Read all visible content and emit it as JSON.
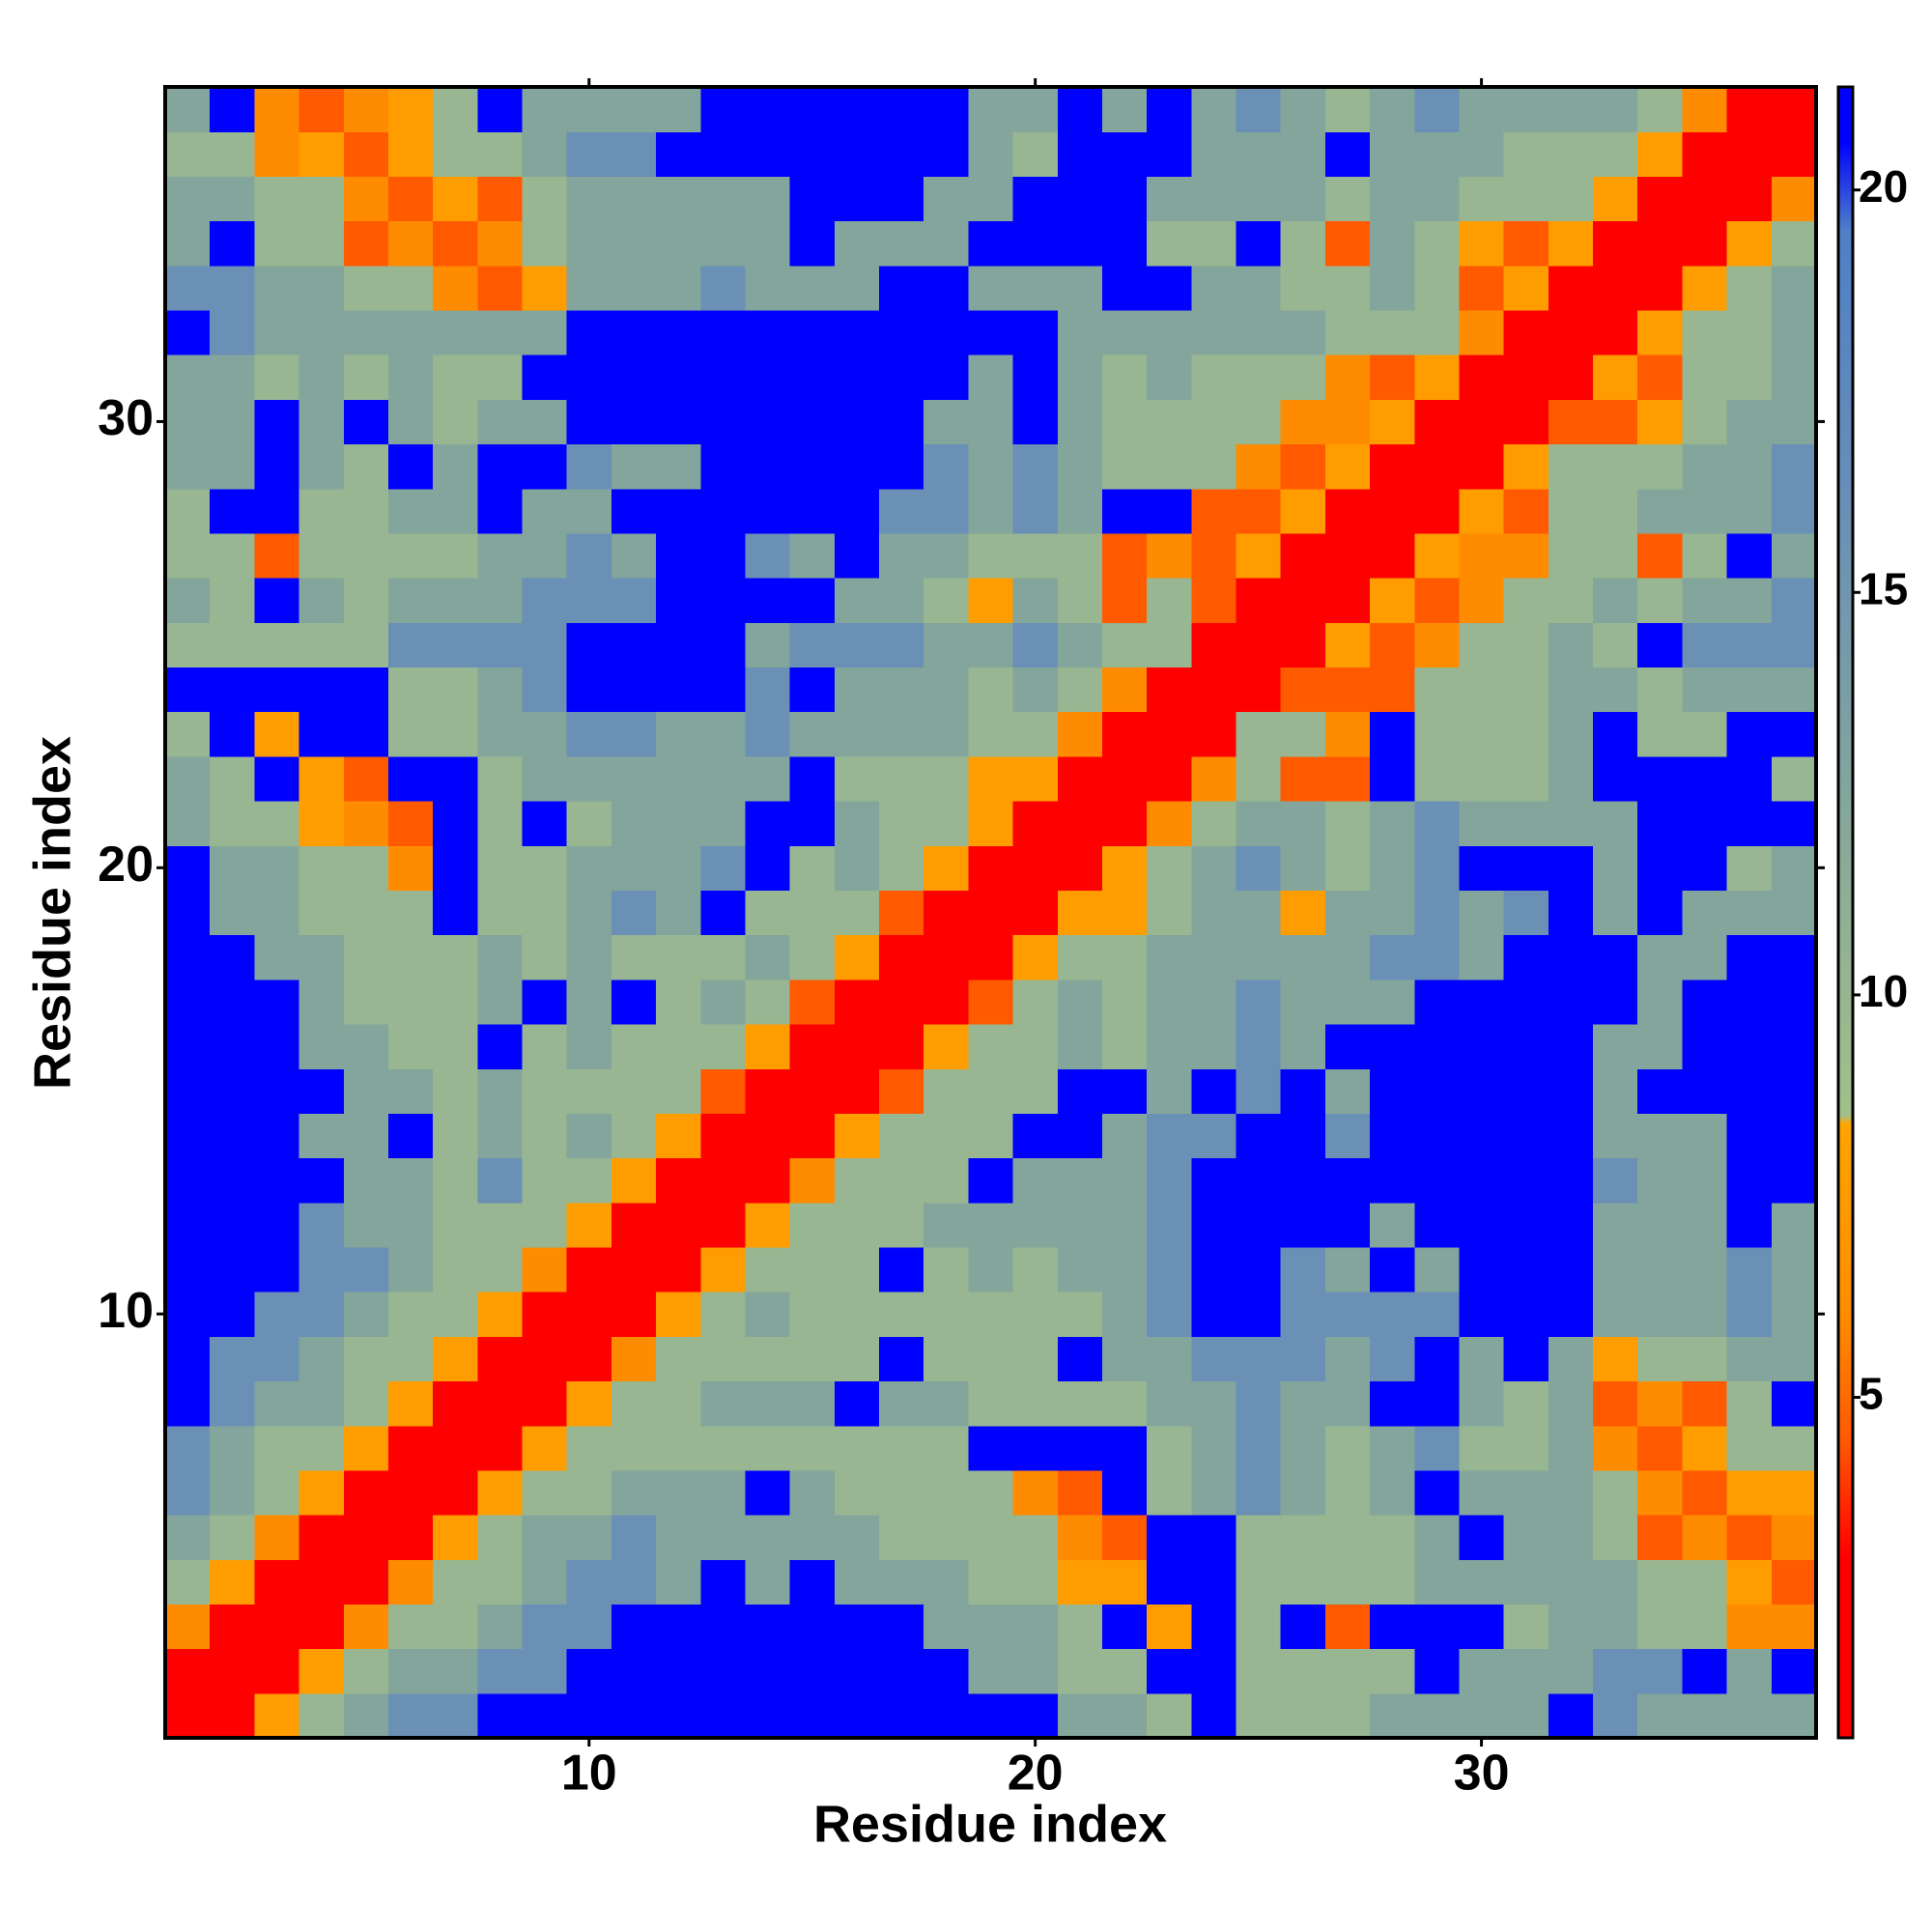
{
  "chart_data": {
    "type": "heatmap",
    "x_label": "Residue index",
    "y_label": "Residue index",
    "xlim": [
      0.5,
      37.5
    ],
    "ylim": [
      0.5,
      37.5
    ],
    "xticks": [
      10,
      20,
      30
    ],
    "yticks": [
      10,
      20,
      30
    ],
    "zlim": [
      0.77,
      21.28
    ],
    "colorbar_ticks": [
      5,
      10,
      15,
      20
    ],
    "colorscale": [
      [
        0.77,
        "#ff0000"
      ],
      [
        3,
        "#ff0000"
      ],
      [
        4.5,
        "#ff5a00"
      ],
      [
        6,
        "#ff8c00"
      ],
      [
        8.4,
        "#ffa500"
      ],
      [
        8.5,
        "#a2c08a"
      ],
      [
        12.5,
        "#84a59c"
      ],
      [
        16,
        "#6a90b6"
      ],
      [
        19.5,
        "#4f7fc8"
      ],
      [
        20.6,
        "#0000ff"
      ],
      [
        21.28,
        "#0000ff"
      ]
    ],
    "x": [
      1,
      2,
      3,
      4,
      5,
      6,
      7,
      8,
      9,
      10,
      11,
      12,
      13,
      14,
      15,
      16,
      17,
      18,
      19,
      20,
      21,
      22,
      23,
      24,
      25,
      26,
      27,
      28,
      29,
      30,
      31,
      32,
      33,
      34,
      35,
      36,
      37
    ],
    "y": [
      1,
      2,
      3,
      4,
      5,
      6,
      7,
      8,
      9,
      10,
      11,
      12,
      13,
      14,
      15,
      16,
      17,
      18,
      19,
      20,
      21,
      22,
      23,
      24,
      25,
      26,
      27,
      28,
      29,
      30,
      31,
      32,
      33,
      34,
      35,
      36,
      37
    ],
    "z": [
      [
        2,
        2,
        7.5,
        10,
        12.5,
        16,
        16,
        21,
        21,
        21,
        21,
        21,
        21,
        21,
        21,
        21,
        21,
        21,
        21,
        21,
        12.5,
        12.5,
        10,
        21,
        10,
        10,
        10,
        12.5,
        12.5,
        12.5,
        12.5,
        21,
        16,
        12.5,
        12.5,
        12.5,
        12.5
      ],
      [
        2,
        2,
        2,
        7.5,
        10,
        12.5,
        12.5,
        16,
        16,
        21,
        21,
        21,
        21,
        21,
        21,
        21,
        21,
        21,
        12.5,
        12.5,
        10,
        10,
        21,
        21,
        10,
        10,
        10,
        10,
        21,
        12.5,
        12.5,
        12.5,
        16,
        16,
        21,
        12.5,
        21
      ],
      [
        6,
        2,
        2,
        2,
        6,
        10,
        10,
        12.5,
        16,
        16,
        21,
        21,
        21,
        21,
        21,
        21,
        21,
        12.5,
        12.5,
        12.5,
        10,
        21,
        7.5,
        21,
        10,
        21,
        4.5,
        21,
        21,
        21,
        10,
        12.5,
        12.5,
        10,
        10,
        6,
        6
      ],
      [
        10,
        7.5,
        2,
        2,
        2,
        6,
        10,
        10,
        12.5,
        16,
        16,
        12.5,
        21,
        12.5,
        21,
        12.5,
        12.5,
        12.5,
        10,
        10,
        7.5,
        7.5,
        21,
        21,
        10,
        10,
        10,
        10,
        12.5,
        12.5,
        12.5,
        12.5,
        12.5,
        10,
        10,
        7.5,
        4.5
      ],
      [
        12.5,
        10,
        6,
        2,
        2,
        2,
        7.5,
        10,
        12.5,
        12.5,
        16,
        12.5,
        12.5,
        12.5,
        12.5,
        12.5,
        10,
        10,
        10,
        10,
        6,
        4.5,
        21,
        21,
        10,
        10,
        10,
        10,
        12.5,
        21,
        12.5,
        12.5,
        10,
        4.5,
        6,
        4.5,
        6
      ],
      [
        16,
        12.5,
        10,
        7.5,
        2,
        2,
        2,
        7.5,
        10,
        10,
        12.5,
        12.5,
        12.5,
        21,
        12.5,
        10,
        10,
        10,
        10,
        6,
        4.5,
        21,
        10,
        12.5,
        16,
        12.5,
        10,
        12.5,
        21,
        12.5,
        12.5,
        12.5,
        10,
        6,
        4.5,
        7.5,
        7.5
      ],
      [
        16,
        12.5,
        10,
        10,
        7.5,
        2,
        2,
        2,
        7.5,
        10,
        10,
        10,
        10,
        10,
        10,
        10,
        10,
        10,
        21,
        21,
        21,
        21,
        10,
        12.5,
        16,
        12.5,
        10,
        12.5,
        16,
        10,
        10,
        12.5,
        6,
        4.5,
        7.5,
        10,
        10
      ],
      [
        21,
        16,
        12.5,
        12.5,
        10,
        7.5,
        2,
        2,
        2,
        7.5,
        10,
        10,
        12.5,
        12.5,
        12.5,
        21,
        12.5,
        12.5,
        10,
        10,
        10,
        10,
        12.5,
        12.5,
        16,
        12.5,
        12.5,
        21,
        21,
        12.5,
        10,
        12.5,
        4.5,
        6,
        4.5,
        10,
        21
      ],
      [
        21,
        16,
        16,
        12.5,
        10,
        10,
        7.5,
        2,
        2,
        2,
        6,
        10,
        10,
        10,
        10,
        10,
        21,
        10,
        10,
        10,
        21,
        12.5,
        12.5,
        16,
        16,
        16,
        12.5,
        16,
        21,
        12.5,
        21,
        12.5,
        7.5,
        10,
        10,
        12.5,
        12.5
      ],
      [
        21,
        21,
        16,
        16,
        12.5,
        10,
        10,
        7.5,
        2,
        2,
        2,
        7.5,
        10,
        12.5,
        10,
        10,
        10,
        10,
        10,
        10,
        10,
        12.5,
        16,
        21,
        21,
        16,
        16,
        16,
        16,
        21,
        21,
        21,
        12.5,
        12.5,
        12.5,
        16,
        12.5
      ],
      [
        21,
        21,
        21,
        16,
        16,
        12.5,
        10,
        10,
        6,
        2,
        2,
        2,
        7.5,
        10,
        10,
        10,
        21,
        10,
        12.5,
        10,
        12.5,
        12.5,
        16,
        21,
        21,
        16,
        12.5,
        21,
        12.5,
        21,
        21,
        21,
        12.5,
        12.5,
        12.5,
        16,
        12.5
      ],
      [
        21,
        21,
        21,
        16,
        12.5,
        12.5,
        10,
        10,
        10,
        7.5,
        2,
        2,
        2,
        7.5,
        10,
        10,
        10,
        12.5,
        12.5,
        12.5,
        12.5,
        12.5,
        16,
        21,
        21,
        21,
        21,
        12.5,
        21,
        21,
        21,
        21,
        12.5,
        12.5,
        12.5,
        21,
        12.5
      ],
      [
        21,
        21,
        21,
        21,
        12.5,
        12.5,
        10,
        16,
        10,
        10,
        7.5,
        2,
        2,
        2,
        6,
        10,
        10,
        10,
        21,
        12.5,
        12.5,
        12.5,
        16,
        21,
        21,
        21,
        21,
        21,
        21,
        21,
        21,
        21,
        16,
        12.5,
        12.5,
        21,
        21
      ],
      [
        21,
        21,
        21,
        12.5,
        12.5,
        21,
        10,
        12.5,
        10,
        12.5,
        10,
        7.5,
        2,
        2,
        2,
        7.5,
        10,
        10,
        10,
        21,
        21,
        12.5,
        16,
        16,
        21,
        21,
        16,
        21,
        21,
        21,
        21,
        21,
        12.5,
        12.5,
        12.5,
        21,
        21
      ],
      [
        21,
        21,
        21,
        21,
        12.5,
        12.5,
        10,
        12.5,
        10,
        10,
        10,
        10,
        4.5,
        2,
        2,
        2,
        4.5,
        10,
        10,
        10,
        21,
        21,
        12.5,
        21,
        16,
        21,
        12.5,
        21,
        21,
        21,
        21,
        21,
        12.5,
        21,
        21,
        21,
        21
      ],
      [
        21,
        21,
        21,
        12.5,
        12.5,
        10,
        10,
        21,
        10,
        12.5,
        10,
        10,
        10,
        7.5,
        2,
        2,
        2,
        7.5,
        10,
        10,
        12.5,
        10,
        12.5,
        12.5,
        16,
        12.5,
        21,
        21,
        21,
        21,
        21,
        21,
        12.5,
        12.5,
        21,
        21,
        21
      ],
      [
        21,
        21,
        21,
        12.5,
        10,
        10,
        10,
        12.5,
        21,
        12.5,
        21,
        10,
        12.5,
        10,
        4.5,
        2,
        2,
        2,
        4.5,
        10,
        12.5,
        10,
        12.5,
        12.5,
        16,
        12.5,
        12.5,
        12.5,
        21,
        21,
        21,
        21,
        21,
        12.5,
        21,
        21,
        21
      ],
      [
        21,
        21,
        12.5,
        12.5,
        10,
        10,
        10,
        12.5,
        10,
        12.5,
        10,
        10,
        10,
        12.5,
        10,
        7.5,
        2,
        2,
        2,
        7.5,
        10,
        10,
        12.5,
        12.5,
        12.5,
        12.5,
        12.5,
        16,
        16,
        12.5,
        21,
        21,
        21,
        12.5,
        12.5,
        21,
        21
      ],
      [
        21,
        12.5,
        12.5,
        10,
        10,
        10,
        21,
        10,
        10,
        12.5,
        16,
        12.5,
        21,
        10,
        10,
        10,
        4.5,
        2,
        2,
        2,
        7.5,
        7.5,
        10,
        12.5,
        12.5,
        7.5,
        12.5,
        12.5,
        16,
        12.5,
        16,
        21,
        12.5,
        21,
        12.5,
        12.5,
        12.5
      ],
      [
        21,
        12.5,
        12.5,
        10,
        10,
        6,
        21,
        10,
        10,
        12.5,
        12.5,
        12.5,
        16,
        21,
        10,
        12.5,
        10,
        7.5,
        2,
        2,
        2,
        7.5,
        10,
        12.5,
        16,
        12.5,
        10,
        12.5,
        16,
        21,
        21,
        21,
        12.5,
        21,
        21,
        10,
        12.5
      ],
      [
        12.5,
        10,
        10,
        7.5,
        6,
        4.5,
        21,
        10,
        21,
        10,
        12.5,
        12.5,
        12.5,
        21,
        21,
        12.5,
        10,
        10,
        7.5,
        2,
        2,
        2,
        6,
        10,
        12.5,
        12.5,
        10,
        12.5,
        16,
        12.5,
        12.5,
        12.5,
        12.5,
        21,
        21,
        21,
        21
      ],
      [
        12.5,
        10,
        21,
        7.5,
        4.5,
        21,
        21,
        10,
        12.5,
        12.5,
        12.5,
        12.5,
        12.5,
        12.5,
        21,
        10,
        10,
        10,
        7.5,
        7.5,
        2,
        2,
        2,
        6,
        10,
        4.5,
        4.5,
        21,
        10,
        10,
        10,
        12.5,
        21,
        21,
        21,
        21,
        10
      ],
      [
        10,
        21,
        7.5,
        21,
        21,
        10,
        10,
        12.5,
        12.5,
        16,
        16,
        12.5,
        12.5,
        16,
        12.5,
        12.5,
        12.5,
        12.5,
        10,
        10,
        6,
        2,
        2,
        2,
        10,
        10,
        6,
        21,
        10,
        10,
        10,
        12.5,
        21,
        10,
        10,
        21,
        21
      ],
      [
        21,
        21,
        21,
        21,
        21,
        10,
        10,
        12.5,
        16,
        21,
        21,
        21,
        21,
        16,
        21,
        12.5,
        12.5,
        12.5,
        10,
        12.5,
        10,
        6,
        2,
        2,
        2,
        4.5,
        4.5,
        4.5,
        10,
        10,
        10,
        12.5,
        12.5,
        10,
        12.5,
        12.5,
        12.5
      ],
      [
        10,
        10,
        10,
        10,
        10,
        16,
        16,
        16,
        16,
        21,
        21,
        21,
        21,
        12.5,
        16,
        16,
        16,
        12.5,
        12.5,
        16,
        12.5,
        10,
        10,
        2,
        2,
        2,
        7.5,
        4.5,
        6,
        10,
        10,
        12.5,
        10,
        21,
        16,
        16,
        16
      ],
      [
        12.5,
        10,
        21,
        12.5,
        10,
        12.5,
        12.5,
        12.5,
        16,
        16,
        16,
        21,
        21,
        21,
        21,
        12.5,
        12.5,
        10,
        7.5,
        12.5,
        10,
        4.5,
        10,
        4.5,
        2,
        2,
        2,
        7.5,
        4.5,
        6,
        10,
        10,
        12.5,
        10,
        12.5,
        12.5,
        16
      ],
      [
        10,
        10,
        4.5,
        10,
        10,
        10,
        10,
        12.5,
        12.5,
        16,
        12.5,
        21,
        21,
        16,
        12.5,
        21,
        12.5,
        12.5,
        10,
        10,
        10,
        4.5,
        6,
        4.5,
        7.5,
        2,
        2,
        2,
        7.5,
        6,
        6,
        10,
        10,
        4.5,
        10,
        21,
        12.5
      ],
      [
        10,
        21,
        21,
        10,
        10,
        12.5,
        12.5,
        21,
        12.5,
        12.5,
        21,
        21,
        21,
        21,
        21,
        21,
        16,
        16,
        12.5,
        16,
        12.5,
        21,
        21,
        4.5,
        4.5,
        7.5,
        2,
        2,
        2,
        7.5,
        4.5,
        10,
        10,
        12.5,
        12.5,
        12.5,
        16
      ],
      [
        12.5,
        12.5,
        21,
        12.5,
        10,
        21,
        12.5,
        21,
        21,
        16,
        12.5,
        12.5,
        21,
        21,
        21,
        21,
        21,
        16,
        12.5,
        16,
        12.5,
        10,
        10,
        10,
        6,
        4.5,
        7.5,
        2,
        2,
        2,
        7.5,
        10,
        10,
        10,
        12.5,
        12.5,
        16
      ],
      [
        12.5,
        12.5,
        21,
        12.5,
        21,
        12.5,
        10,
        12.5,
        12.5,
        21,
        21,
        21,
        21,
        21,
        21,
        21,
        21,
        12.5,
        12.5,
        21,
        12.5,
        10,
        10,
        10,
        10,
        6,
        6,
        7.5,
        2,
        2,
        2,
        4.5,
        4.5,
        7.5,
        10,
        12.5,
        12.5
      ],
      [
        12.5,
        12.5,
        10,
        12.5,
        10,
        12.5,
        10,
        10,
        21,
        21,
        21,
        21,
        21,
        21,
        21,
        21,
        21,
        21,
        12.5,
        21,
        12.5,
        10,
        12.5,
        10,
        10,
        10,
        6,
        4.5,
        7.5,
        2,
        2,
        2,
        7.5,
        4.5,
        10,
        10,
        12.5
      ],
      [
        21,
        16,
        12.5,
        12.5,
        12.5,
        12.5,
        12.5,
        12.5,
        12.5,
        21,
        21,
        21,
        21,
        21,
        21,
        21,
        21,
        21,
        21,
        21,
        12.5,
        12.5,
        12.5,
        12.5,
        12.5,
        12.5,
        10,
        10,
        10,
        6,
        2,
        2,
        2,
        7.5,
        10,
        10,
        12.5
      ],
      [
        16,
        16,
        12.5,
        12.5,
        10,
        10,
        6,
        4.5,
        7.5,
        12.5,
        12.5,
        12.5,
        16,
        12.5,
        12.5,
        12.5,
        21,
        21,
        12.5,
        12.5,
        12.5,
        21,
        21,
        12.5,
        12.5,
        10,
        10,
        12.5,
        10,
        4.5,
        7.5,
        2,
        2,
        2,
        7.5,
        10,
        12.5
      ],
      [
        12.5,
        21,
        10,
        10,
        4.5,
        6,
        4.5,
        6,
        10,
        12.5,
        12.5,
        12.5,
        12.5,
        12.5,
        21,
        12.5,
        12.5,
        12.5,
        21,
        21,
        21,
        21,
        10,
        10,
        21,
        10,
        4.5,
        12.5,
        10,
        7.5,
        4.5,
        7.5,
        2,
        2,
        2,
        7.5,
        10
      ],
      [
        12.5,
        12.5,
        10,
        10,
        6,
        4.5,
        7.5,
        4.5,
        10,
        12.5,
        12.5,
        12.5,
        12.5,
        12.5,
        21,
        21,
        21,
        12.5,
        12.5,
        21,
        21,
        21,
        12.5,
        12.5,
        12.5,
        12.5,
        10,
        12.5,
        12.5,
        10,
        10,
        10,
        7.5,
        2,
        2,
        2,
        6
      ],
      [
        10,
        10,
        6,
        7.5,
        4.5,
        7.5,
        10,
        10,
        12.5,
        16,
        16,
        21,
        21,
        21,
        21,
        21,
        21,
        21,
        12.5,
        10,
        21,
        21,
        21,
        12.5,
        12.5,
        12.5,
        21,
        12.5,
        12.5,
        12.5,
        10,
        10,
        10,
        7.5,
        2,
        2,
        2
      ],
      [
        12.5,
        21,
        6,
        4.5,
        6,
        7.5,
        10,
        21,
        12.5,
        12.5,
        12.5,
        12.5,
        21,
        21,
        21,
        21,
        21,
        21,
        12.5,
        12.5,
        21,
        12.5,
        21,
        12.5,
        16,
        12.5,
        10,
        12.5,
        16,
        12.5,
        12.5,
        12.5,
        12.5,
        10,
        6,
        2,
        2
      ]
    ]
  }
}
